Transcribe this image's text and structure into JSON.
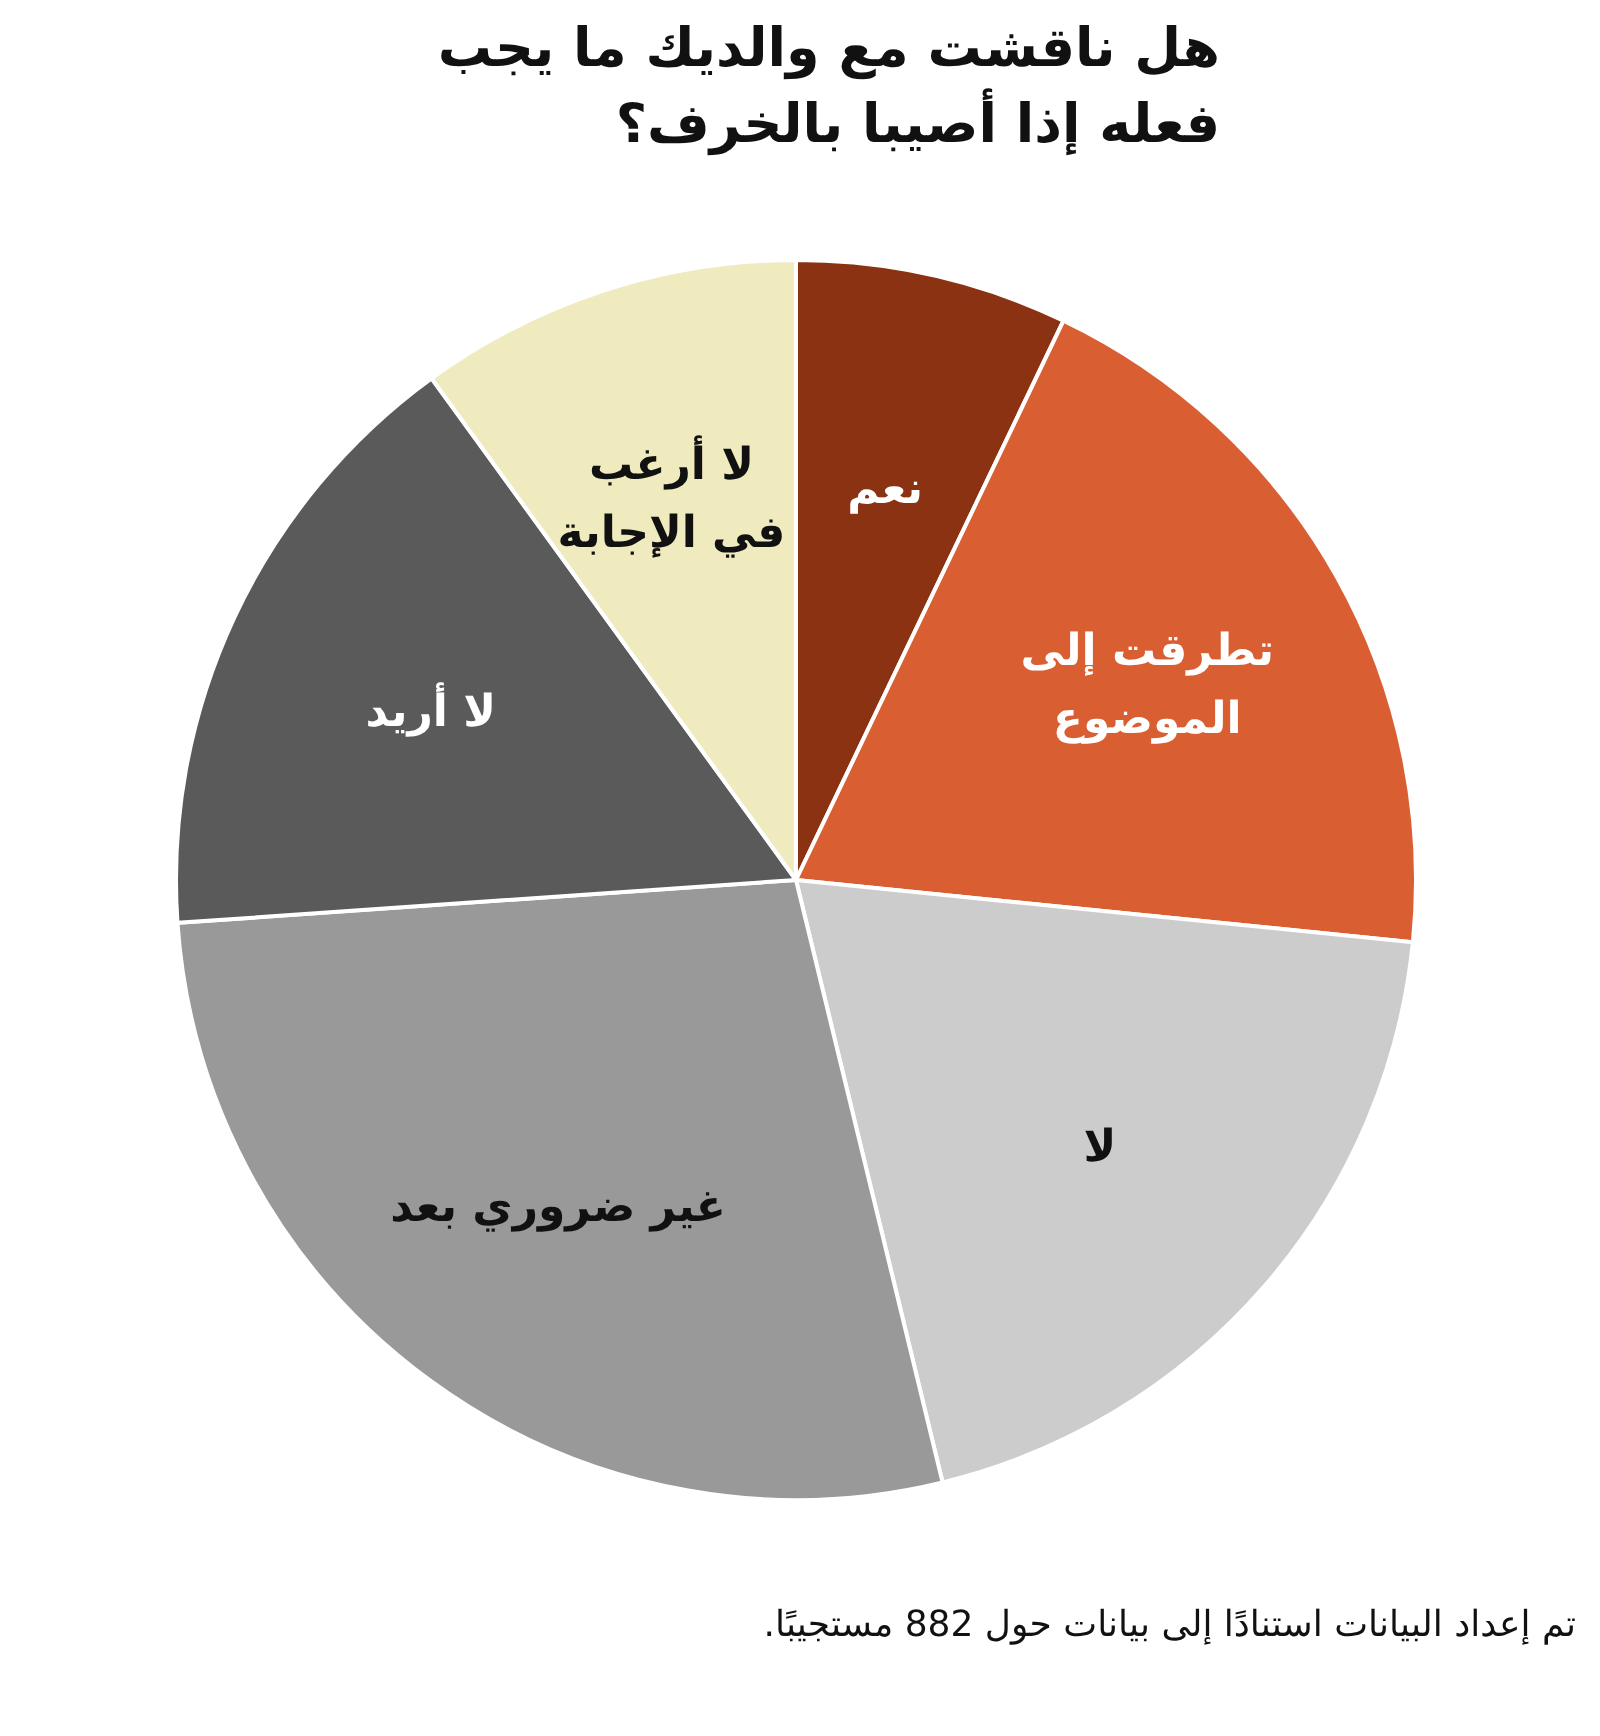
{
  "chart_data": {
    "type": "pie",
    "title": "هل ناقشت مع والديك ما يجب فعله إذا أصيبا بالخرف؟",
    "categories": [
      "نعم",
      "تطرقت إلى الموضوع",
      "لا",
      "غير ضروري بعد",
      "لا أريد",
      "لا أرغب في الإجابة"
    ],
    "values": [
      7.1,
      19.5,
      19.6,
      27.7,
      16.1,
      10.0
    ],
    "colors": [
      "#8b3212",
      "#d95f33",
      "#cccccc",
      "#999999",
      "#5a5a5a",
      "#f0ebbf"
    ],
    "annotations": [
      "تم إعداد البيانات استنادًا إلى بيانات حول 882 مستجيبًا."
    ]
  }
}
